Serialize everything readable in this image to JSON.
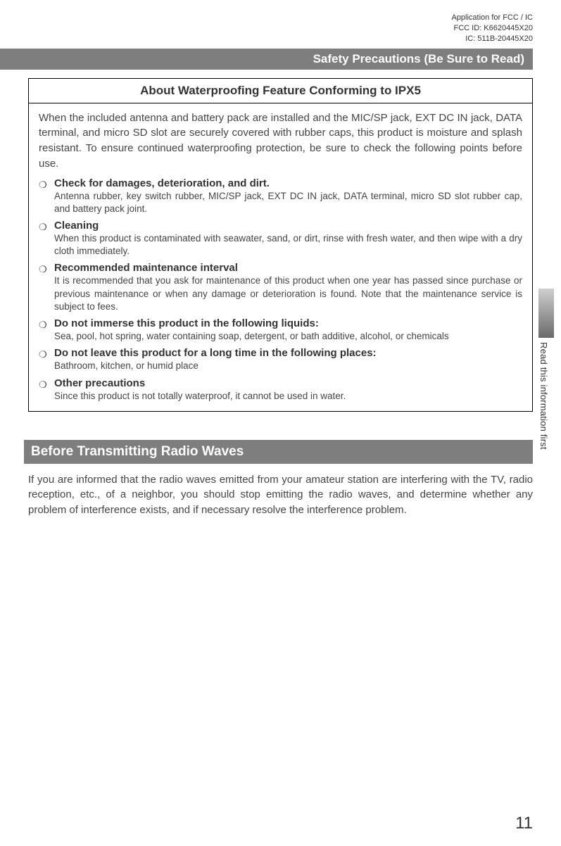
{
  "header": {
    "line1": "Application for FCC / IC",
    "line2": "FCC ID: K6620445X20",
    "line3": "IC: 511B-20445X20"
  },
  "safety_bar": "Safety Precautions (Be Sure to Read)",
  "box": {
    "title": "About Waterproofing Feature Conforming to IPX5",
    "intro": "When the included antenna and battery pack are installed and the MIC/SP jack, EXT DC IN jack, DATA terminal, and micro SD slot are securely covered with rubber caps, this product is moisture and splash resistant. To ensure continued waterproofing protection, be sure to check the following points before use.",
    "items": [
      {
        "bold": "Check for damages, deterioration, and dirt.",
        "desc": "Antenna rubber, key switch rubber, MIC/SP jack, EXT DC IN jack, DATA terminal, micro SD slot rubber cap, and battery pack joint."
      },
      {
        "bold": "Cleaning",
        "desc": "When this product is contaminated with seawater, sand, or dirt, rinse with fresh water, and then wipe with a dry cloth immediately."
      },
      {
        "bold": "Recommended maintenance interval",
        "desc": "It is recommended that you ask for maintenance of this product when one year has passed since purchase or previous maintenance or when any damage or deterioration is found. Note that the maintenance service is subject to fees."
      },
      {
        "bold": "Do not immerse this product in the following liquids:",
        "desc": "Sea, pool, hot spring, water containing soap, detergent, or bath additive, alcohol, or chemicals"
      },
      {
        "bold": "Do not leave this product for a long time in the following places:",
        "desc": "Bathroom, kitchen, or humid place"
      },
      {
        "bold": "Other precautions",
        "desc": "Since this product is not totally waterproof, it cannot be used in water."
      }
    ]
  },
  "section2": {
    "title": "Before Transmitting Radio Waves",
    "text": "If you are informed that the radio waves emitted from your amateur station are interfering with the TV, radio reception, etc., of a neighbor, you should stop emitting the radio waves, and determine whether any problem of interference exists, and if necessary resolve the interference problem."
  },
  "side_tab": "Read this information first",
  "page_number": "11",
  "colors": {
    "bar_bg": "#7e7e7e",
    "bar_text": "#ffffff",
    "body_text": "#444444",
    "border": "#000000"
  }
}
